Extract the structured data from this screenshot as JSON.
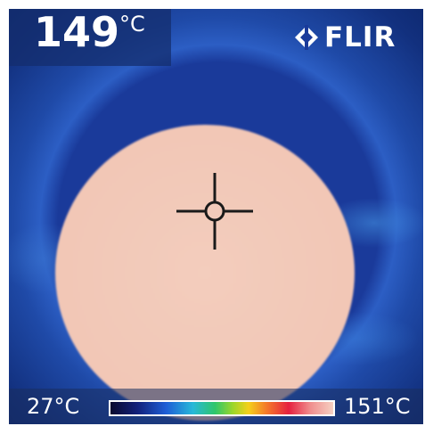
{
  "overlay": {
    "spot_temperature_value": "149",
    "spot_temperature_unit": "°C",
    "brand": "FLIR"
  },
  "scale": {
    "min_label": "27°C",
    "max_label": "151°C",
    "palette": "iron/rainbow thermal"
  },
  "colors": {
    "background_cold": "#0b2568",
    "hot_core": "#f3cdbd",
    "ring_red": "#e4203e",
    "ring_yellow": "#f5c21c",
    "ring_green": "#36c66a"
  },
  "icons": {
    "crosshair": "spot-meter-crosshair-icon",
    "brand_logo": "flir-diamond-logo-icon"
  }
}
